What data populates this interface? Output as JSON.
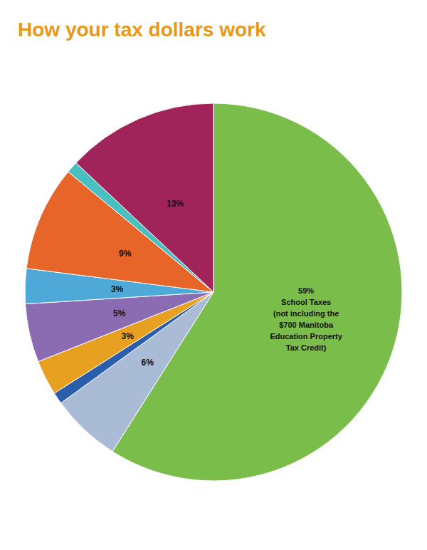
{
  "chart_data": {
    "type": "pie",
    "title": "How your tax dollars work",
    "values": [
      59,
      6,
      1,
      3,
      5,
      3,
      9,
      1,
      13
    ],
    "value_labels": [
      "59%\nSchool Taxes\n(not including the\n$700 Manitoba\nEducation Property\nTax Credit)",
      "6%",
      null,
      "3%",
      "5%",
      "3%",
      "9%",
      null,
      "13%"
    ],
    "colors": [
      "#7BBD4A",
      "#AABBD6",
      "#2B5DAD",
      "#E8A020",
      "#8B6BB1",
      "#4EA8D8",
      "#E8652A",
      "#4ABFBF",
      "#A0235A"
    ],
    "data_labels": true
  }
}
